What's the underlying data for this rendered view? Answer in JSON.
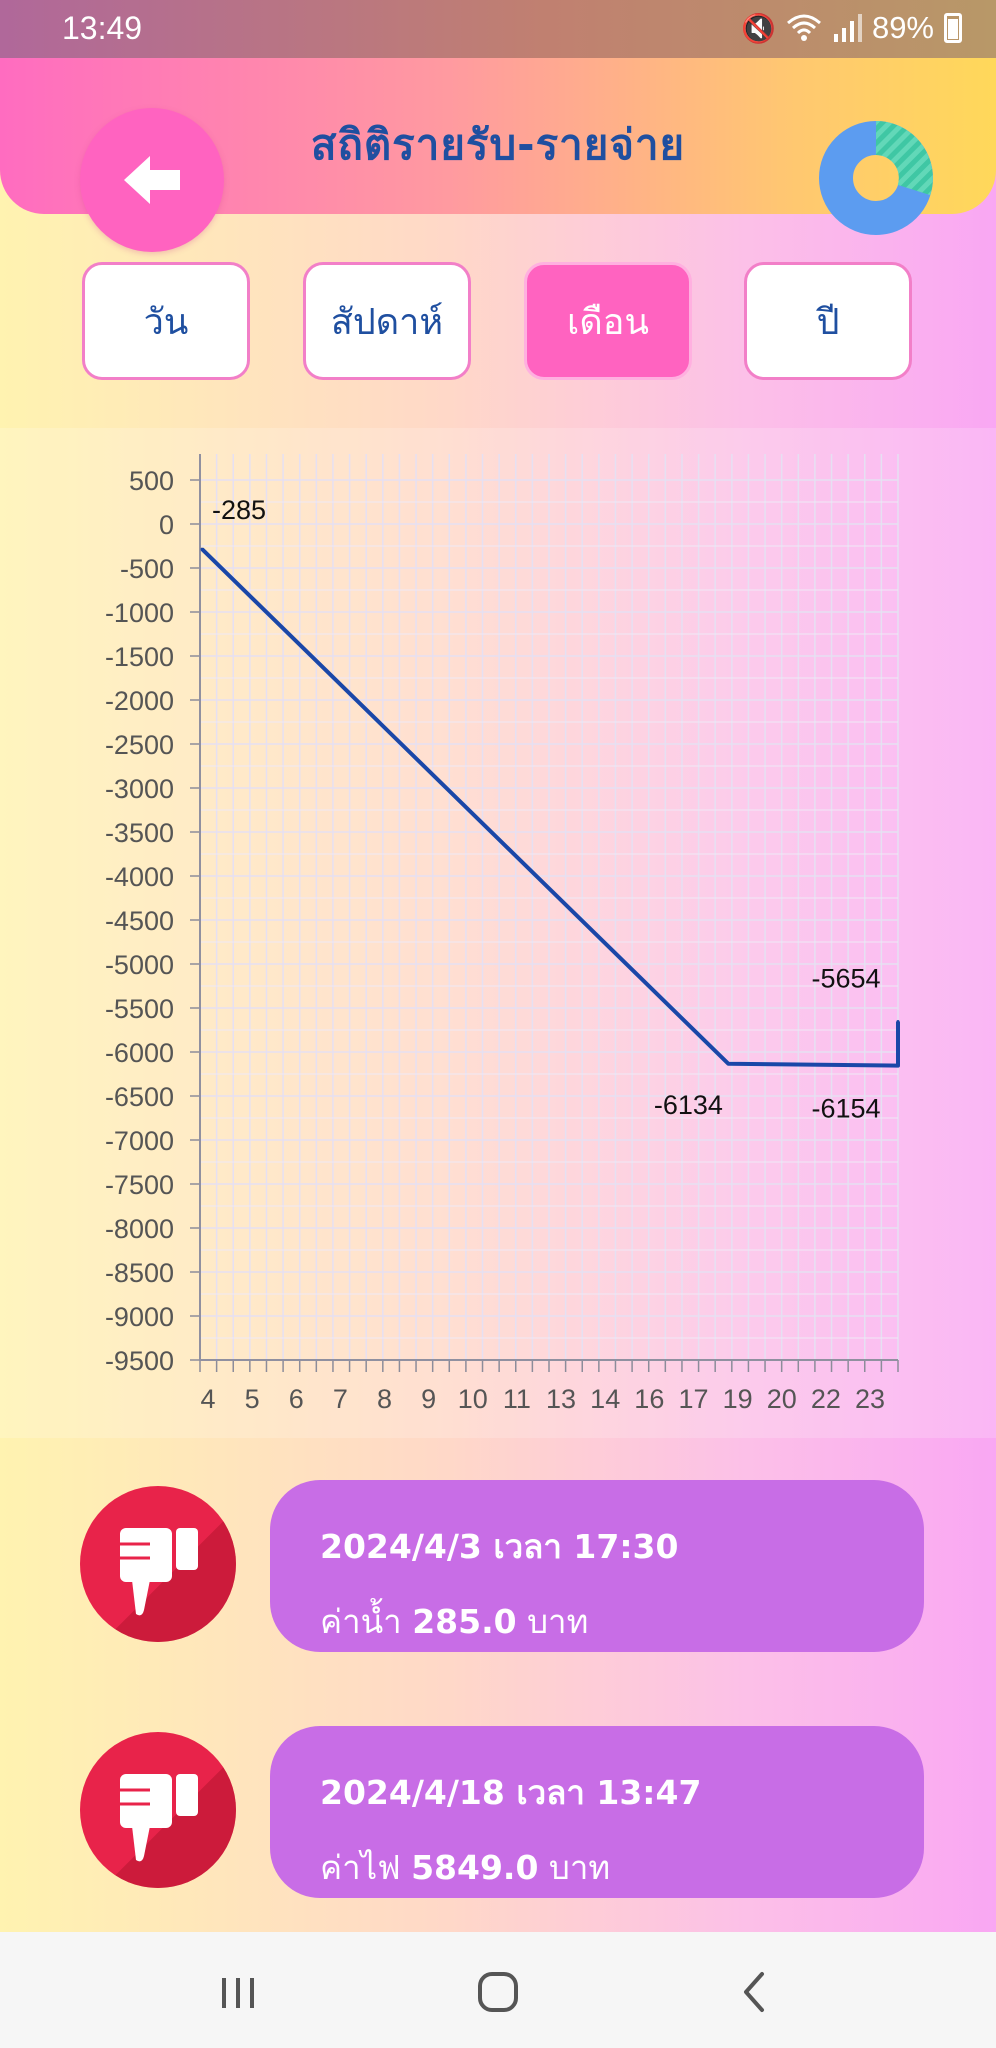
{
  "status": {
    "time": "13:49",
    "battery": "89%"
  },
  "header": {
    "title": "สถิติรายรับ-รายจ่าย"
  },
  "tabs": [
    {
      "label": "วัน",
      "active": false
    },
    {
      "label": "สัปดาห์",
      "active": false
    },
    {
      "label": "เดือน",
      "active": true
    },
    {
      "label": "ปี",
      "active": false
    }
  ],
  "chart_data": {
    "type": "line",
    "x_tick_labels": [
      "4",
      "5",
      "6",
      "7",
      "8",
      "9",
      "10",
      "11",
      "13",
      "14",
      "16",
      "17",
      "19",
      "20",
      "22",
      "23"
    ],
    "y_ticks": [
      500,
      0,
      -500,
      -1000,
      -1500,
      -2000,
      -2500,
      -3000,
      -3500,
      -4000,
      -4500,
      -5000,
      -5500,
      -6000,
      -6500,
      -7000,
      -7500,
      -8000,
      -8500,
      -9000,
      -9500
    ],
    "ylim": [
      -9500,
      500
    ],
    "xlim": [
      4,
      23.7
    ],
    "series": [
      {
        "color": "#1a47a8",
        "points": [
          {
            "x": 4,
            "y": -285
          },
          {
            "x": 18.9,
            "y": -6134
          },
          {
            "x": 23.7,
            "y": -6154
          },
          {
            "x": 23.7,
            "y": -5654
          }
        ]
      }
    ],
    "data_labels": [
      "-285",
      "-6134",
      "-6154",
      "-5654"
    ],
    "grid": true
  },
  "transactions": [
    {
      "datetime": "2024/4/3 เวลา 17:30",
      "label": "ค่าน้ำ",
      "amount": "285.0",
      "unit": "บาท",
      "type": "expense"
    },
    {
      "datetime": "2024/4/18 เวลา 13:47",
      "label": "ค่าไฟ",
      "amount": "5849.0",
      "unit": "บาท",
      "type": "expense"
    }
  ],
  "icons": {
    "back": "arrow-left-icon",
    "stats": "donut-chart-icon",
    "expense": "thumbs-down-icon"
  },
  "colors": {
    "accent": "#ff63c0",
    "title": "#1f4fa0",
    "card": "#c86de6",
    "expense": "#e8234a",
    "line": "#1a47a8"
  }
}
